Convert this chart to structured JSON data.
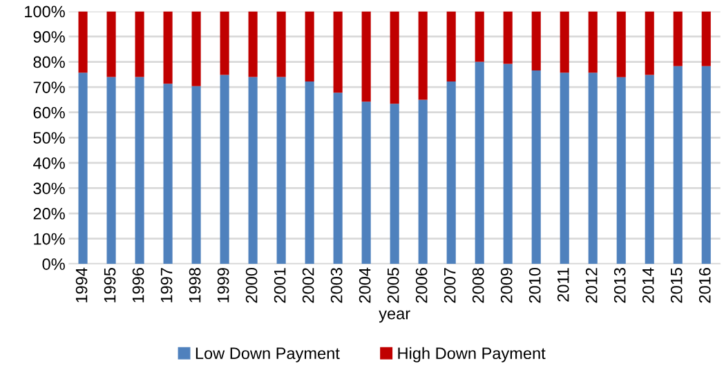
{
  "chart_data": {
    "type": "bar",
    "stacked": true,
    "xlabel": "year",
    "categories": [
      "1994",
      "1995",
      "1996",
      "1997",
      "1998",
      "1999",
      "2000",
      "2001",
      "2002",
      "2003",
      "2004",
      "2005",
      "2006",
      "2007",
      "2008",
      "2009",
      "2010",
      "2011",
      "2012",
      "2013",
      "2014",
      "2015",
      "2016"
    ],
    "series": [
      {
        "name": "Low Down Payment",
        "color": "#4f81bd",
        "values": [
          75.7,
          74,
          74,
          71.3,
          70.4,
          74.8,
          74,
          74,
          72.2,
          67.8,
          64.2,
          63.4,
          65,
          72.2,
          80,
          79.2,
          76.6,
          75.7,
          75.7,
          73.9,
          74.8,
          78.3,
          78.3
        ]
      },
      {
        "name": "High Down Payment",
        "color": "#c00000",
        "values": [
          24.3,
          26,
          26,
          28.7,
          29.6,
          25.2,
          26,
          26,
          27.8,
          32.2,
          35.8,
          36.6,
          35,
          27.8,
          20,
          20.8,
          23.4,
          24.3,
          24.3,
          26.1,
          25.2,
          21.7,
          21.7
        ]
      }
    ],
    "ylim": [
      0,
      100
    ],
    "yticks": [
      {
        "value": 0,
        "label": "0%"
      },
      {
        "value": 10,
        "label": "10%"
      },
      {
        "value": 20,
        "label": "20%"
      },
      {
        "value": 30,
        "label": "30%"
      },
      {
        "value": 40,
        "label": "40%"
      },
      {
        "value": 50,
        "label": "50%"
      },
      {
        "value": 60,
        "label": "60%"
      },
      {
        "value": 70,
        "label": "70%"
      },
      {
        "value": 80,
        "label": "80%"
      },
      {
        "value": 90,
        "label": "90%"
      },
      {
        "value": 100,
        "label": "100%"
      }
    ],
    "grid": "y",
    "legend": "bottom"
  }
}
